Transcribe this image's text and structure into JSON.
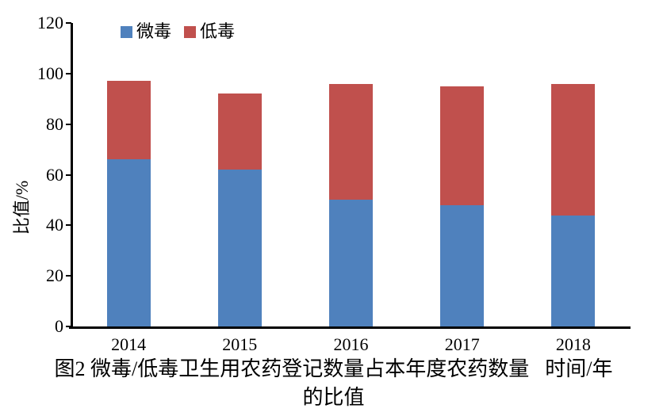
{
  "figure": {
    "caption": {
      "line1": "图2 微毒/低毒卫生用农药登记数量占本年度农药数量",
      "line2": "的比值"
    }
  },
  "chart_data": {
    "type": "bar",
    "stacked": true,
    "categories": [
      "2014",
      "2015",
      "2016",
      "2017",
      "2018"
    ],
    "series": [
      {
        "name": "微毒",
        "color": "#4F81BD",
        "values": [
          66,
          62,
          50,
          48,
          44
        ]
      },
      {
        "name": "低毒",
        "color": "#C0504D",
        "values": [
          31,
          30,
          46,
          47,
          52
        ]
      }
    ],
    "stack_totals": [
      97,
      92,
      96,
      95,
      96
    ],
    "title": "",
    "xlabel": "时间/年",
    "ylabel": "比值/%",
    "ylim": [
      0,
      120
    ],
    "yticks": [
      0,
      20,
      40,
      60,
      80,
      100,
      120
    ],
    "grid": false,
    "legend_position": "top-inside-left",
    "axis_color": "#000000",
    "background_color": "#ffffff"
  }
}
